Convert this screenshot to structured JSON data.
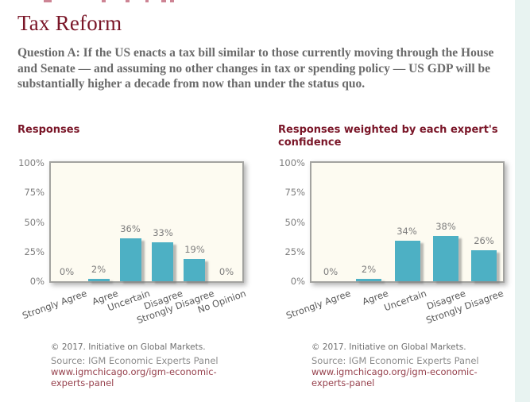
{
  "page": {
    "title": "Tax Reform",
    "question": "Question A: If the US enacts a tax bill similar to those currently moving through the House and Senate — and assuming no other changes in tax or spending policy — US GDP will be substantially higher a decade from now than under the status quo."
  },
  "colors": {
    "accent": "#7a1628",
    "bar": "#4db0c4",
    "link": "#96404c",
    "plot_background": "#fdfbf1"
  },
  "chart_data": [
    {
      "type": "bar",
      "title": "Responses",
      "categories": [
        "Strongly Agree",
        "Agree",
        "Uncertain",
        "Disagree",
        "Strongly Disagree",
        "No Opinion"
      ],
      "values": [
        0,
        2,
        36,
        33,
        19,
        0
      ],
      "bar_labels": [
        "0%",
        "2%",
        "36%",
        "33%",
        "19%",
        "0%"
      ],
      "ylim": [
        0,
        100
      ],
      "y_tick_labels": [
        "100%",
        "75%",
        "50%",
        "25%",
        "0%"
      ],
      "legend": "none",
      "grid": "off",
      "footer": {
        "copyright": "© 2017. Initiative on Global Markets.",
        "source": "Source: IGM Economic Experts Panel",
        "url": "www.igmchicago.org/igm-economic-experts-panel"
      }
    },
    {
      "type": "bar",
      "title": "Responses weighted by each expert's confidence",
      "categories": [
        "Strongly Agree",
        "Agree",
        "Uncertain",
        "Disagree",
        "Strongly Disagree"
      ],
      "values": [
        0,
        2,
        34,
        38,
        26
      ],
      "bar_labels": [
        "0%",
        "2%",
        "34%",
        "38%",
        "26%"
      ],
      "ylim": [
        0,
        100
      ],
      "y_tick_labels": [
        "100%",
        "75%",
        "50%",
        "25%",
        "0%"
      ],
      "legend": "none",
      "grid": "off",
      "footer": {
        "copyright": "© 2017. Initiative on Global Markets.",
        "source": "Source: IGM Economic Experts Panel",
        "url": "www.igmchicago.org/igm-economic-experts-panel"
      }
    }
  ]
}
